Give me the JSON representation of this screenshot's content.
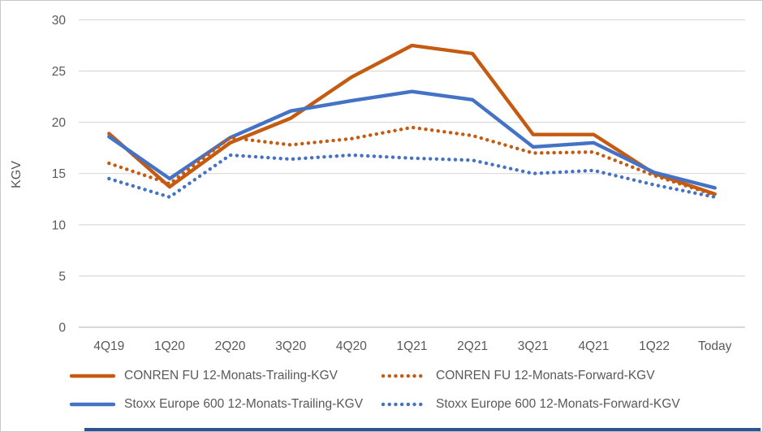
{
  "colors": {
    "orange": "#C55A11",
    "blue": "#4472C4",
    "gridline": "#D9D9D9",
    "axis_line": "#BFBFBF",
    "text": "#595959",
    "footer_bar": "#2E5395",
    "background": "#FFFFFF"
  },
  "chart_data": {
    "type": "line",
    "title": "",
    "xlabel": "",
    "ylabel": "KGV",
    "ylim": [
      0,
      30
    ],
    "yticks": [
      0,
      5,
      10,
      15,
      20,
      25,
      30
    ],
    "grid": true,
    "legend_position": "bottom",
    "categories": [
      "4Q19",
      "1Q20",
      "2Q20",
      "3Q20",
      "4Q20",
      "1Q21",
      "2Q21",
      "3Q21",
      "4Q21",
      "1Q22",
      "Today"
    ],
    "series": [
      {
        "name": "CONREN FU 12-Monats-Trailing-KGV",
        "color": "#C55A11",
        "style": "solid",
        "values": [
          18.9,
          13.7,
          18.0,
          20.4,
          24.4,
          27.5,
          26.7,
          18.8,
          18.8,
          15.0,
          13.0
        ]
      },
      {
        "name": "CONREN FU 12-Monats-Forward-KGV",
        "color": "#C55A11",
        "style": "dotted",
        "values": [
          16.0,
          14.0,
          18.5,
          17.8,
          18.4,
          19.5,
          18.7,
          17.0,
          17.1,
          14.8,
          12.9
        ]
      },
      {
        "name": "Stoxx Europe 600 12-Monats-Trailing-KGV",
        "color": "#4472C4",
        "style": "solid",
        "values": [
          18.6,
          14.5,
          18.5,
          21.1,
          22.1,
          23.0,
          22.2,
          17.6,
          18.0,
          15.1,
          13.6
        ]
      },
      {
        "name": "Stoxx Europe 600 12-Monats-Forward-KGV",
        "color": "#4472C4",
        "style": "dotted",
        "values": [
          14.5,
          12.7,
          16.8,
          16.4,
          16.8,
          16.5,
          16.3,
          15.0,
          15.3,
          13.9,
          12.7
        ]
      }
    ]
  }
}
